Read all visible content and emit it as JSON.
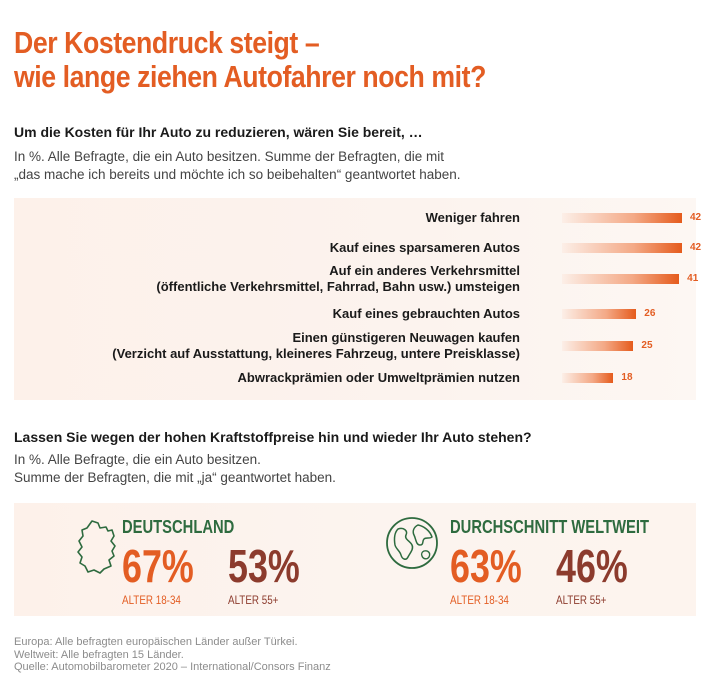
{
  "title_line1": "Der Kostendruck steigt –",
  "title_line2": "wie lange ziehen Autofahrer noch mit?",
  "question1": "Um die Kosten für Ihr Auto zu reduzieren, wären Sie bereit, …",
  "question1_note_line1": "In %. Alle Befragte, die ein Auto besitzen. Summe der Befragten, die mit",
  "question1_note_line2": "„das mache ich bereits und möchte ich so beibehalten“ geantwortet haben.",
  "chart_data": {
    "type": "bar",
    "orientation": "horizontal",
    "categories": [
      [
        "Weniger fahren"
      ],
      [
        "Kauf eines sparsameren Autos"
      ],
      [
        "Auf ein anderes Verkehrsmittel",
        "(öffentliche Verkehrsmittel, Fahrrad, Bahn usw.) umsteigen"
      ],
      [
        "Kauf eines gebrauchten Autos"
      ],
      [
        "Einen günstigeren Neuwagen kaufen",
        "(Verzicht auf Ausstattung, kleineres Fahrzeug, untere Preisklasse)"
      ],
      [
        "Abwrackprämien oder Umweltprämien nutzen"
      ]
    ],
    "values": [
      42,
      42,
      41,
      26,
      25,
      18
    ],
    "value_labels": [
      "42",
      "42",
      "41",
      "26",
      "25",
      "18"
    ],
    "xlim": [
      0,
      42
    ],
    "bar_color": "#e55b1c",
    "grid": false
  },
  "question2": "Lassen Sie wegen der hohen Kraftstoffpreise hin und wieder Ihr Auto stehen?",
  "question2_note_line1": "In %. Alle Befragte, die ein Auto besitzen.",
  "question2_note_line2": "Summe der Befragten, die mit „ja“ geantwortet haben.",
  "regions": [
    {
      "name": "DEUTSCHLAND",
      "icon": "germany-map-icon",
      "stats": [
        {
          "value": "67%",
          "label": "ALTER 18-34",
          "color": "#e35d23"
        },
        {
          "value": "53%",
          "label": "ALTER 55+",
          "color": "#8c3b2d"
        }
      ]
    },
    {
      "name": "DURCHSCHNITT WELTWEIT",
      "icon": "globe-icon",
      "stats": [
        {
          "value": "63%",
          "label": "ALTER 18-34",
          "color": "#e35d23"
        },
        {
          "value": "46%",
          "label": "ALTER 55+",
          "color": "#8c3b2d"
        }
      ]
    }
  ],
  "footer": [
    "Europa: Alle befragten europäischen Länder außer Türkei.",
    "Weltweit: Alle befragten 15 Länder.",
    "Quelle: Automobilbarometer 2020 – International/Consors Finanz"
  ],
  "colors": {
    "accent": "#e35d23",
    "green": "#2e6b3f",
    "brown": "#8c3b2d"
  }
}
